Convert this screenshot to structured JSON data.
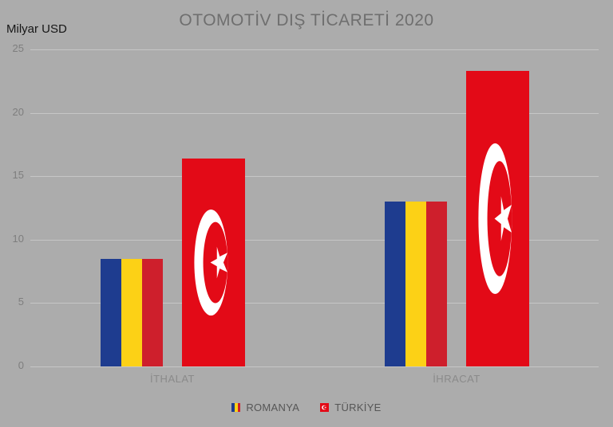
{
  "chart": {
    "title": "OTOMOTİV DIŞ TİCARETİ 2020",
    "y_axis_title": "Milyar USD"
  },
  "legend": {
    "items": [
      {
        "label": "ROMANYA",
        "flag": "romania"
      },
      {
        "label": "TÜRKİYE",
        "flag": "turkey"
      }
    ]
  },
  "colors": {
    "background": "#ACACAC",
    "gridline": "#C6C6C6",
    "title_text": "#6F6F6F",
    "tick_text": "#7E7E7E",
    "category_text": "#8A8A8A",
    "legend_text": "#565656",
    "axis_title_text": "#161616",
    "romania_blue": "#1E3C8F",
    "romania_yellow": "#FCD116",
    "romania_red": "#CE1F2C",
    "turkey_red": "#E30A17",
    "turkey_white": "#FFFFFF"
  },
  "chart_data": {
    "type": "bar",
    "title": "OTOMOTİV DIŞ TİCARETİ 2020",
    "xlabel": "",
    "ylabel": "Milyar USD",
    "categories": [
      "İTHALAT",
      "İHRACAT"
    ],
    "category_ids": [
      "ithalat",
      "ihracat"
    ],
    "series": [
      {
        "name": "ROMANYA",
        "id": "romanya",
        "style": "romania-flag",
        "values": [
          8.5,
          13.0
        ]
      },
      {
        "name": "TÜRKİYE",
        "id": "turkiye",
        "style": "turkey-flag",
        "values": [
          16.4,
          23.3
        ]
      }
    ],
    "ylim": [
      0,
      25
    ],
    "yticks": [
      0,
      5,
      10,
      15,
      20,
      25
    ],
    "grid": true,
    "legend_position": "bottom"
  }
}
